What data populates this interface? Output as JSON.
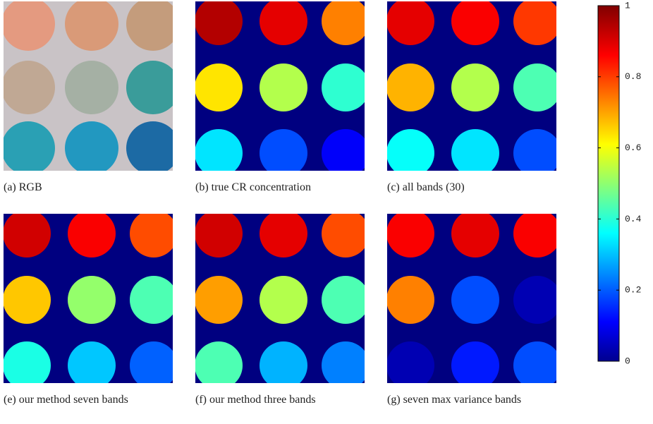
{
  "panels": [
    {
      "caption": "(a) RGB"
    },
    {
      "caption": "(b) true CR concentration",
      "wells": [
        0.95,
        0.9,
        0.75,
        0.65,
        0.55,
        0.42,
        0.35,
        0.2,
        0.12
      ]
    },
    {
      "caption": "(c) all bands (30)",
      "wells": [
        0.9,
        0.88,
        0.82,
        0.7,
        0.55,
        0.45,
        0.38,
        0.35,
        0.2
      ]
    },
    {
      "caption": "(e) our method seven bands",
      "wells": [
        0.92,
        0.88,
        0.8,
        0.68,
        0.52,
        0.45,
        0.4,
        0.32,
        0.22
      ]
    },
    {
      "caption": "(f) our method three bands",
      "wells": [
        0.92,
        0.9,
        0.8,
        0.72,
        0.55,
        0.45,
        0.45,
        0.3,
        0.25
      ]
    },
    {
      "caption": "(g) seven max variance bands",
      "wells": [
        0.88,
        0.9,
        0.88,
        0.75,
        0.2,
        0.05,
        0.05,
        0.15,
        0.2
      ]
    }
  ],
  "colorbar": {
    "ylim": [
      0,
      1
    ],
    "yticks": [
      0,
      0.2,
      0.4,
      0.6,
      0.8,
      1
    ]
  }
}
